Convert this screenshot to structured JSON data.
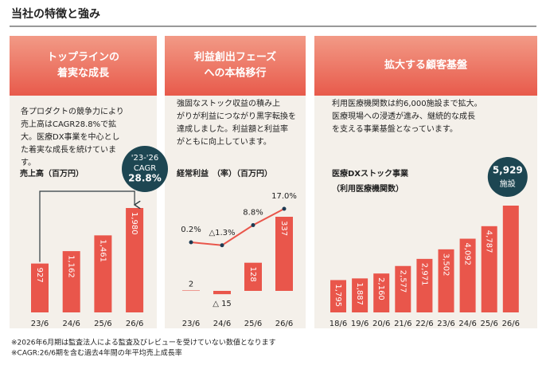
{
  "title": "当社の特徴と強み",
  "panels": [
    {
      "heading": [
        "トップラインの",
        "着実な成長"
      ],
      "text": [
        "各プロダクトの競争力により",
        "売上高はCAGR28.8%で拡",
        "大。医療DX事業を中心とし",
        "た着実な成長を続けていま",
        "す。"
      ]
    },
    {
      "heading": [
        "利益創出フェーズ",
        "への本格移行"
      ],
      "text": [
        "強固なストック収益の積み上",
        "がりが利益につながり黒字転換を",
        "達成しました。利益額と利益率",
        "がともに向上しています。"
      ]
    },
    {
      "heading": [
        "拡大する顧客基盤"
      ],
      "text": [
        "利用医療機関数は約6,000施設まで拡大。",
        "医療現場への浸透が進み、継続的な成長",
        "を支える事業基盤となっています。"
      ]
    }
  ],
  "chart_data": [
    {
      "type": "bar",
      "title": [
        "売上高（百万円）"
      ],
      "categories": [
        "23/6",
        "24/6",
        "25/6",
        "26/6"
      ],
      "values": [
        927,
        1162,
        1461,
        1980
      ],
      "value_labels": [
        "927",
        "1,162",
        "1,461",
        "1,980"
      ],
      "color": "#e9564b",
      "annotation": [
        "'23-'26",
        "CAGR",
        "28.8%"
      ],
      "annotation_color": "#1d4652"
    },
    {
      "type": "bar-line",
      "title": [
        "経常利益　（率）（百万円）"
      ],
      "categories": [
        "23/6",
        "24/6",
        "25/6",
        "26/6"
      ],
      "values": [
        2,
        -15,
        128,
        337
      ],
      "value_labels": [
        "2",
        "△ 15",
        "128",
        "337"
      ],
      "color": "#e9564b",
      "line_values": [
        0.2,
        -1.3,
        8.8,
        17.0
      ],
      "line_labels": [
        "0.2%",
        "△1.3%",
        "8.8%",
        "17.0%"
      ],
      "line_color": "#e9564b",
      "marker_color": "#1d3a52"
    },
    {
      "type": "bar",
      "title": [
        "医療DXストック事業",
        "（利用医療機関数）"
      ],
      "categories": [
        "18/6",
        "19/6",
        "20/6",
        "21/6",
        "22/6",
        "23/6",
        "24/6",
        "25/6",
        "26/6"
      ],
      "values": [
        1795,
        1887,
        2160,
        2577,
        2971,
        3502,
        4092,
        4787,
        5929
      ],
      "value_labels": [
        "1,795",
        "1,887",
        "2,160",
        "2,577",
        "2,971",
        "3,502",
        "4,092",
        "4,787",
        "5,929"
      ],
      "color": "#e9564b",
      "callout_unit": "施設",
      "annotation_color": "#1d4652"
    }
  ],
  "footnotes": [
    "※2026年6月期は監査法人による監査及びレビューを受けていない数値となります",
    "※CAGR:26/6期を含む過去4年間の年平均売上成長率"
  ]
}
